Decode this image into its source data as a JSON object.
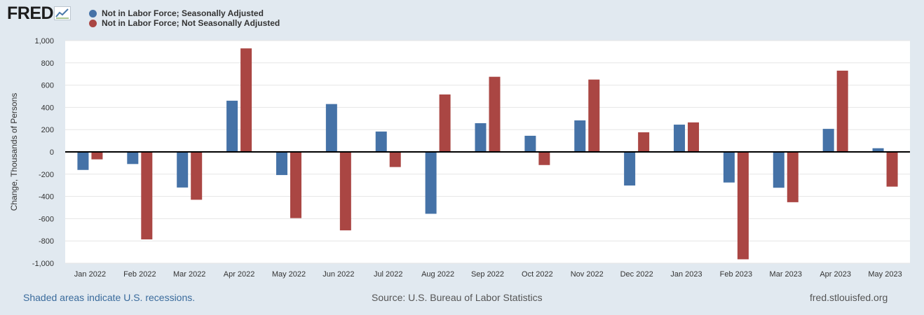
{
  "header": {
    "logo_text": "FRED",
    "logo_icon": "chart-line-icon"
  },
  "legend": [
    {
      "label": "Not in Labor Force; Seasonally Adjusted",
      "color": "#4572a7"
    },
    {
      "label": "Not in Labor Force; Not Seasonally Adjusted",
      "color": "#aa4643"
    }
  ],
  "footer": {
    "recession_note": "Shaded areas indicate U.S. recessions.",
    "source": "Source: U.S. Bureau of Labor Statistics",
    "site": "fred.stlouisfed.org"
  },
  "chart_data": {
    "type": "bar",
    "title": "",
    "xlabel": "",
    "ylabel": "Change, Thousands of Persons",
    "ylim": [
      -1000,
      1000
    ],
    "yticks": [
      1000,
      800,
      600,
      400,
      200,
      0,
      -200,
      -400,
      -600,
      -800,
      -1000
    ],
    "ytick_labels": [
      "1,000",
      "800",
      "600",
      "400",
      "200",
      "0",
      "-200",
      "-400",
      "-600",
      "-800",
      "-1,000"
    ],
    "grid": true,
    "categories": [
      "Jan 2022",
      "Feb 2022",
      "Mar 2022",
      "Apr 2022",
      "May 2022",
      "Jun 2022",
      "Jul 2022",
      "Aug 2022",
      "Sep 2022",
      "Oct 2022",
      "Nov 2022",
      "Dec 2022",
      "Jan 2023",
      "Feb 2023",
      "Mar 2023",
      "Apr 2023",
      "May 2023"
    ],
    "series": [
      {
        "name": "Not in Labor Force; Seasonally Adjusted",
        "color": "#4572a7",
        "values": [
          -162,
          -109,
          -320,
          460,
          -208,
          430,
          183,
          -556,
          258,
          145,
          283,
          -302,
          245,
          -275,
          -322,
          207,
          33
        ]
      },
      {
        "name": "Not in Labor Force; Not Seasonally Adjusted",
        "color": "#aa4643",
        "values": [
          -67,
          -786,
          -430,
          930,
          -595,
          -705,
          -136,
          516,
          675,
          -118,
          650,
          176,
          265,
          -965,
          -452,
          730,
          -312
        ]
      }
    ]
  }
}
